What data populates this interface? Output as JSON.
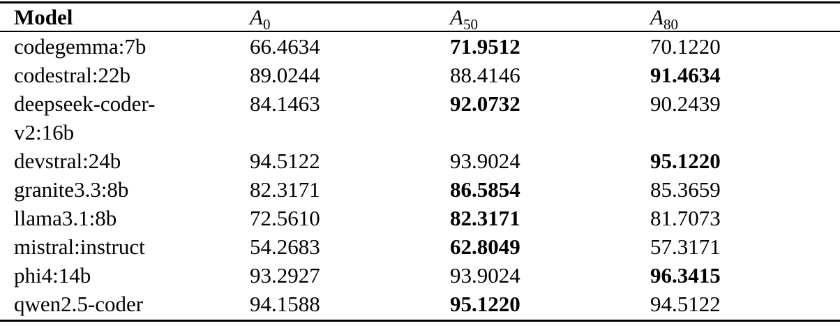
{
  "table": {
    "header": {
      "model": "Model",
      "a0": {
        "base": "A",
        "sub": "0"
      },
      "a50": {
        "base": "A",
        "sub": "50"
      },
      "a80": {
        "base": "A",
        "sub": "80"
      }
    },
    "rows": [
      {
        "model": "codegemma:7b",
        "a0": "66.4634",
        "a50": "71.9512",
        "a80": "70.1220",
        "best": "a50"
      },
      {
        "model": "codestral:22b",
        "a0": "89.0244",
        "a50": "88.4146",
        "a80": "91.4634",
        "best": "a80"
      },
      {
        "model": "deepseek-coder-v2:16b",
        "a0": "84.1463",
        "a50": "92.0732",
        "a80": "90.2439",
        "best": "a50"
      },
      {
        "model": "devstral:24b",
        "a0": "94.5122",
        "a50": "93.9024",
        "a80": "95.1220",
        "best": "a80"
      },
      {
        "model": "granite3.3:8b",
        "a0": "82.3171",
        "a50": "86.5854",
        "a80": "85.3659",
        "best": "a50"
      },
      {
        "model": "llama3.1:8b",
        "a0": "72.5610",
        "a50": "82.3171",
        "a80": "81.7073",
        "best": "a50"
      },
      {
        "model": "mistral:instruct",
        "a0": "54.2683",
        "a50": "62.8049",
        "a80": "57.3171",
        "best": "a50"
      },
      {
        "model": "phi4:14b",
        "a0": "93.2927",
        "a50": "93.9024",
        "a80": "96.3415",
        "best": "a80"
      },
      {
        "model": "qwen2.5-coder",
        "a0": "94.1588",
        "a50": "95.1220",
        "a80": "94.5122",
        "best": "a50"
      }
    ]
  }
}
